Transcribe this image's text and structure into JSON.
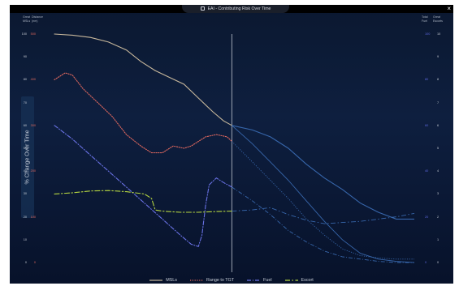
{
  "window": {
    "title": "EAI - Contributing Risk Over Time",
    "close_label": "×"
  },
  "headers": {
    "left1": [
      "Great",
      "MSLs"
    ],
    "left2": [
      "Distance",
      "(nm)"
    ],
    "right1": [
      "Total",
      "Fuel"
    ],
    "right2": [
      "Great",
      "Escorts"
    ]
  },
  "axes": {
    "y_title": "% Change Over Time",
    "ticks_msls": [
      "100",
      "90",
      "80",
      "70",
      "60",
      "50",
      "40",
      "30",
      "20",
      "10",
      "0"
    ],
    "ticks_distance": [
      "500",
      "",
      "400",
      "",
      "300",
      "",
      "200",
      "",
      "100",
      "",
      "0"
    ],
    "ticks_fuel": [
      "100",
      "",
      "80",
      "",
      "60",
      "",
      "40",
      "",
      "20",
      "",
      "0"
    ],
    "ticks_escorts": [
      "10",
      "9",
      "8",
      "7",
      "6",
      "5",
      "4",
      "3",
      "2",
      "1",
      "0"
    ]
  },
  "colors": {
    "msls": "#c8b89c",
    "range": "#e0685e",
    "fuel": "#6a72e6",
    "escort": "#b6d640",
    "future": "#3c6fb8",
    "now_line": "#a9b0bd"
  },
  "chart_data": {
    "type": "line",
    "x_now": 0.493,
    "ylim": [
      0,
      100
    ],
    "series": [
      {
        "name": "MSLs",
        "style": "solid",
        "points": [
          [
            0,
            100
          ],
          [
            0.05,
            99.5
          ],
          [
            0.1,
            98.5
          ],
          [
            0.15,
            96.5
          ],
          [
            0.2,
            93
          ],
          [
            0.24,
            88
          ],
          [
            0.28,
            84
          ],
          [
            0.32,
            81
          ],
          [
            0.36,
            78
          ],
          [
            0.4,
            72
          ],
          [
            0.44,
            66
          ],
          [
            0.47,
            62
          ],
          [
            0.493,
            60
          ]
        ],
        "future": [
          [
            0.493,
            60
          ],
          [
            0.55,
            52
          ],
          [
            0.6,
            44
          ],
          [
            0.65,
            36
          ],
          [
            0.7,
            27
          ],
          [
            0.75,
            18
          ],
          [
            0.8,
            10
          ],
          [
            0.85,
            4
          ],
          [
            0.9,
            1.5
          ],
          [
            0.95,
            0.5
          ],
          [
            1.0,
            0
          ]
        ]
      },
      {
        "name": "Range to TGT",
        "style": "dotted",
        "points": [
          [
            0,
            80
          ],
          [
            0.03,
            83
          ],
          [
            0.05,
            82
          ],
          [
            0.08,
            76
          ],
          [
            0.12,
            70
          ],
          [
            0.16,
            64
          ],
          [
            0.2,
            56
          ],
          [
            0.24,
            51
          ],
          [
            0.27,
            48
          ],
          [
            0.3,
            48
          ],
          [
            0.33,
            51
          ],
          [
            0.36,
            50
          ],
          [
            0.38,
            51
          ],
          [
            0.42,
            55
          ],
          [
            0.45,
            56
          ],
          [
            0.48,
            55
          ],
          [
            0.493,
            53
          ]
        ],
        "future": [
          [
            0.493,
            53
          ],
          [
            0.55,
            44
          ],
          [
            0.6,
            36
          ],
          [
            0.65,
            28
          ],
          [
            0.7,
            19
          ],
          [
            0.75,
            12
          ],
          [
            0.8,
            6
          ],
          [
            0.85,
            3
          ],
          [
            0.9,
            2
          ],
          [
            0.95,
            1.5
          ],
          [
            1.0,
            1.5
          ]
        ]
      },
      {
        "name": "Fuel",
        "style": "dashdot",
        "points": [
          [
            0,
            60
          ],
          [
            0.05,
            54
          ],
          [
            0.1,
            47
          ],
          [
            0.15,
            40
          ],
          [
            0.2,
            33
          ],
          [
            0.25,
            26
          ],
          [
            0.3,
            19
          ],
          [
            0.35,
            12
          ],
          [
            0.38,
            8
          ],
          [
            0.4,
            7
          ],
          [
            0.41,
            12
          ],
          [
            0.42,
            25
          ],
          [
            0.43,
            34
          ],
          [
            0.45,
            37
          ],
          [
            0.47,
            35
          ],
          [
            0.493,
            33
          ]
        ],
        "future": [
          [
            0.493,
            33
          ],
          [
            0.55,
            27
          ],
          [
            0.6,
            21
          ],
          [
            0.65,
            14
          ],
          [
            0.7,
            9
          ],
          [
            0.75,
            5
          ],
          [
            0.8,
            2.5
          ],
          [
            0.85,
            1.5
          ],
          [
            0.9,
            0.5
          ],
          [
            0.95,
            0
          ],
          [
            1.0,
            0
          ]
        ]
      },
      {
        "name": "Escort",
        "style": "longdash",
        "points": [
          [
            0,
            30
          ],
          [
            0.05,
            30.5
          ],
          [
            0.1,
            31.3
          ],
          [
            0.15,
            31.5
          ],
          [
            0.2,
            31
          ],
          [
            0.25,
            30
          ],
          [
            0.27,
            28
          ],
          [
            0.28,
            23
          ],
          [
            0.3,
            22.5
          ],
          [
            0.35,
            22
          ],
          [
            0.4,
            22
          ],
          [
            0.45,
            22.3
          ],
          [
            0.493,
            22.5
          ]
        ],
        "future": [
          [
            0.493,
            22.5
          ],
          [
            0.55,
            23
          ],
          [
            0.6,
            24
          ],
          [
            0.65,
            21
          ],
          [
            0.7,
            18.5
          ],
          [
            0.75,
            17
          ],
          [
            0.8,
            17.5
          ],
          [
            0.85,
            18
          ],
          [
            0.9,
            19
          ],
          [
            0.95,
            20
          ],
          [
            1.0,
            21.5
          ]
        ]
      },
      {
        "name": "Projection",
        "style": "solid",
        "future": [
          [
            0.493,
            60
          ],
          [
            0.55,
            58
          ],
          [
            0.6,
            55
          ],
          [
            0.65,
            50
          ],
          [
            0.7,
            43
          ],
          [
            0.75,
            37
          ],
          [
            0.8,
            32
          ],
          [
            0.85,
            26
          ],
          [
            0.9,
            22
          ],
          [
            0.95,
            19
          ],
          [
            1.0,
            19
          ]
        ]
      }
    ]
  },
  "legend": [
    {
      "label": "MSLs",
      "style": "solid",
      "color": "#c8b89c"
    },
    {
      "label": "Range to TGT",
      "style": "dotted",
      "color": "#e0685e"
    },
    {
      "label": "Fuel",
      "style": "dashdot",
      "color": "#6a72e6"
    },
    {
      "label": "Escort",
      "style": "longdash",
      "color": "#b6d640"
    }
  ]
}
